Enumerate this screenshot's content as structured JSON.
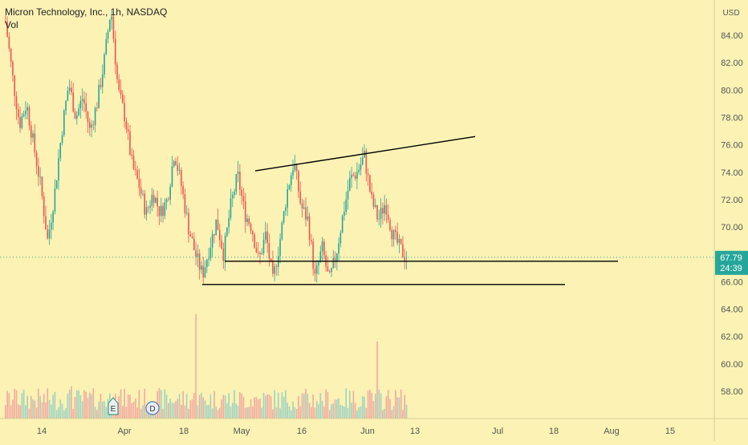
{
  "legend": {
    "title": "Micron Technology, Inc., 1h, NASDAQ",
    "indicator": "Vol"
  },
  "colors": {
    "background": "#fbf2b4",
    "up": "#26a69a",
    "down": "#ef5350",
    "up_volume": "#9fd2c2",
    "down_volume": "#f2a9a0",
    "axis_text": "#555555",
    "price_badge": "#26a69a",
    "trendline": "#000000"
  },
  "chart_data": {
    "type": "candlestick",
    "price_axis": {
      "currency": "USD",
      "ticks": [
        "84.00",
        "82.00",
        "80.00",
        "78.00",
        "76.00",
        "74.00",
        "72.00",
        "70.00",
        "68.00",
        "66.00",
        "64.00",
        "62.00",
        "60.00",
        "58.00"
      ],
      "ylim": [
        56.5,
        85.5
      ]
    },
    "time_axis": {
      "ticks": [
        "14",
        "Apr",
        "18",
        "May",
        "16",
        "Jun",
        "13",
        "Jul",
        "18",
        "Aug",
        "15"
      ]
    },
    "last_price": {
      "value": "67.79",
      "countdown": "24:39"
    },
    "event_markers": [
      "E",
      "D"
    ],
    "price_path": [
      [
        0,
        85.0
      ],
      [
        1,
        81.0
      ],
      [
        2,
        77.5
      ],
      [
        3,
        79.0
      ],
      [
        4,
        76.0
      ],
      [
        5,
        73.0
      ],
      [
        6,
        69.0
      ],
      [
        7,
        72.5
      ],
      [
        8,
        77.0
      ],
      [
        9,
        80.5
      ],
      [
        10,
        78.0
      ],
      [
        11,
        79.5
      ],
      [
        12,
        77.0
      ],
      [
        13,
        79.0
      ],
      [
        14,
        82.0
      ],
      [
        15,
        86.0
      ],
      [
        16,
        80.0
      ],
      [
        17,
        78.0
      ],
      [
        18,
        74.5
      ],
      [
        19,
        73.0
      ],
      [
        20,
        71.0
      ],
      [
        21,
        72.5
      ],
      [
        22,
        71.0
      ],
      [
        23,
        72.0
      ],
      [
        24,
        75.5
      ],
      [
        25,
        73.0
      ],
      [
        26,
        70.0
      ],
      [
        27,
        68.0
      ],
      [
        28,
        66.5
      ],
      [
        29,
        68.5
      ],
      [
        30,
        70.5
      ],
      [
        31,
        68.0
      ],
      [
        32,
        71.5
      ],
      [
        33,
        73.8
      ],
      [
        34,
        71.0
      ],
      [
        35,
        70.0
      ],
      [
        36,
        67.5
      ],
      [
        37,
        69.5
      ],
      [
        38,
        66.0
      ],
      [
        39,
        69.0
      ],
      [
        40,
        72.5
      ],
      [
        41,
        74.8
      ],
      [
        42,
        71.5
      ],
      [
        43,
        70.5
      ],
      [
        44,
        66.2
      ],
      [
        45,
        68.5
      ],
      [
        46,
        66.0
      ],
      [
        47,
        68.0
      ],
      [
        48,
        71.0
      ],
      [
        49,
        73.5
      ],
      [
        50,
        74.0
      ],
      [
        51,
        75.2
      ],
      [
        52,
        72.0
      ],
      [
        53,
        70.5
      ],
      [
        54,
        71.8
      ],
      [
        55,
        69.5
      ],
      [
        56,
        68.5
      ],
      [
        57,
        67.7
      ]
    ],
    "trendlines": [
      {
        "name": "resistance",
        "from": {
          "x": "Apr 29",
          "y": 74.1
        },
        "to": {
          "x": "Jun 22",
          "y": 76.6
        }
      },
      {
        "name": "support-upper",
        "from": {
          "x": "Apr 23",
          "y": 67.5
        },
        "to": {
          "x": "Jul 27",
          "y": 67.5
        }
      },
      {
        "name": "support-lower",
        "from": {
          "x": "Apr 16",
          "y": 65.8
        },
        "to": {
          "x": "Jul 20",
          "y": 65.8
        }
      }
    ]
  }
}
